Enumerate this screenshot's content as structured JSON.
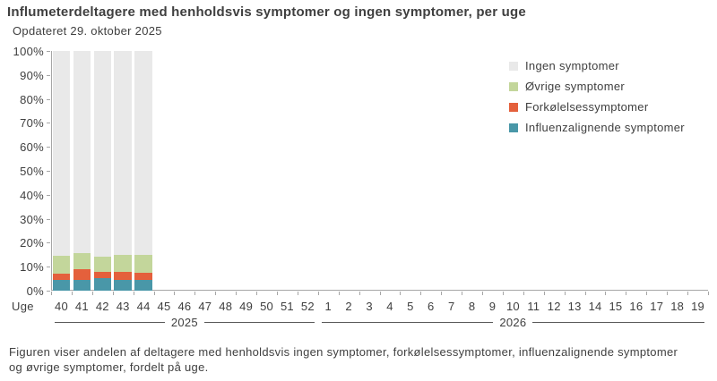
{
  "title": "Influmeterdeltagere med henholdsvis symptomer og ingen symptomer, per uge",
  "subtitle": "Opdateret 29. oktober 2025",
  "caption": "Figuren viser andelen af deltagere med henholdsvis ingen symptomer, forkølelsessymptomer, influenzalignende symptomer og øvrige symptomer, fordelt på uge.",
  "colors": {
    "influenzalignende": "#4997A8",
    "forkolelse": "#E4603C",
    "ovrige": "#C3D69B",
    "ingen": "#E9E9E9",
    "axis": "#A6A6A6",
    "text": "#3F3F3F",
    "year_line": "#595959"
  },
  "legend": {
    "items": [
      {
        "label": "Ingen symptomer",
        "color": "#E9E9E9"
      },
      {
        "label": "Øvrige symptomer",
        "color": "#C3D69B"
      },
      {
        "label": "Forkølelsessymptomer",
        "color": "#E4603C"
      },
      {
        "label": "Influenzalignende symptomer",
        "color": "#4997A8"
      }
    ]
  },
  "chart_data": {
    "type": "bar",
    "stacked": true,
    "grid": false,
    "legend_position": "right",
    "x_axis_label": "Uge",
    "categories": [
      "40",
      "41",
      "42",
      "43",
      "44",
      "45",
      "46",
      "47",
      "48",
      "49",
      "50",
      "51",
      "52",
      "1",
      "2",
      "3",
      "4",
      "5",
      "6",
      "7",
      "8",
      "9",
      "10",
      "11",
      "12",
      "13",
      "14",
      "15",
      "16",
      "17",
      "18",
      "19"
    ],
    "year_groups": [
      {
        "label": "2025",
        "count": 13
      },
      {
        "label": "2026",
        "count": 19
      }
    ],
    "y_ticks": [
      "100%",
      "90%",
      "80%",
      "70%",
      "60%",
      "50%",
      "40%",
      "30%",
      "20%",
      "10%",
      "0%"
    ],
    "ylim": [
      0,
      100
    ],
    "unit": "%",
    "series": [
      {
        "name": "Influenzalignende symptomer",
        "color": "#4997A8",
        "values": [
          4.4,
          4.5,
          5.3,
          4.4,
          4.4
        ]
      },
      {
        "name": "Forkølelsessymptomer",
        "color": "#E4603C",
        "values": [
          2.8,
          4.4,
          2.7,
          3.4,
          3.2
        ]
      },
      {
        "name": "Øvrige symptomer",
        "color": "#C3D69B",
        "values": [
          7.3,
          6.9,
          6.0,
          7.2,
          7.4
        ]
      },
      {
        "name": "Ingen symptomer",
        "color": "#E9E9E9",
        "values": [
          85.5,
          84.2,
          86.0,
          85.0,
          85.0
        ]
      }
    ]
  }
}
